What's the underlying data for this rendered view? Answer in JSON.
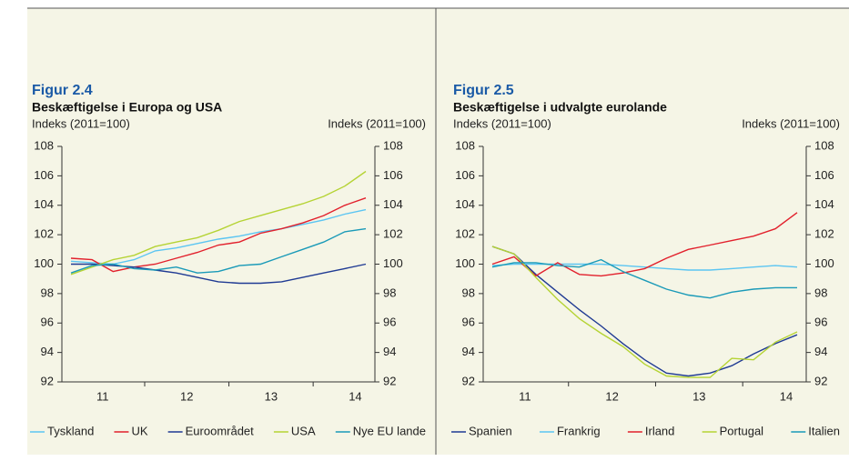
{
  "chart_data": [
    {
      "type": "line",
      "title": "Figur 2.4",
      "subtitle": "Beskæftigelse i Europa og USA",
      "ylabel": "Indeks (2011=100)",
      "y2label": "Indeks (2011=100)",
      "categories": [
        null,
        "11",
        null,
        null,
        null,
        "12",
        null,
        null,
        null,
        "13",
        null,
        null,
        null,
        "14",
        null
      ],
      "ylim": [
        92,
        108
      ],
      "yticks": [
        92,
        94,
        96,
        98,
        100,
        102,
        104,
        106,
        108
      ],
      "y2lim": [
        92,
        108
      ],
      "y2ticks": [
        92,
        94,
        96,
        98,
        100,
        102,
        104,
        106,
        108
      ],
      "series": [
        {
          "name": "Tyskland",
          "color": "#5bc5f2",
          "values": [
            100.2,
            100.1,
            100.0,
            100.3,
            100.9,
            101.1,
            101.4,
            101.7,
            101.9,
            102.2,
            102.4,
            102.7,
            103.0,
            103.4,
            103.7
          ]
        },
        {
          "name": "UK",
          "color": "#e2202c",
          "values": [
            100.4,
            100.3,
            99.5,
            99.8,
            100.0,
            100.4,
            100.8,
            101.3,
            101.5,
            102.1,
            102.4,
            102.8,
            103.3,
            104.0,
            104.5
          ]
        },
        {
          "name": "Euroområdet",
          "color": "#1f3a93",
          "values": [
            100.0,
            100.0,
            99.9,
            99.8,
            99.6,
            99.4,
            99.1,
            98.8,
            98.7,
            98.7,
            98.8,
            99.1,
            99.4,
            99.7,
            100.0
          ]
        },
        {
          "name": "USA",
          "color": "#b5d334",
          "values": [
            99.3,
            99.8,
            100.3,
            100.6,
            101.2,
            101.5,
            101.8,
            102.3,
            102.9,
            103.3,
            103.7,
            104.1,
            104.6,
            105.3,
            106.3
          ]
        },
        {
          "name": "Nye EU lande",
          "color": "#1a9ab8",
          "values": [
            99.4,
            99.9,
            100.0,
            99.7,
            99.6,
            99.8,
            99.4,
            99.5,
            99.9,
            100.0,
            100.5,
            101.0,
            101.5,
            102.2,
            102.4
          ]
        }
      ]
    },
    {
      "type": "line",
      "title": "Figur 2.5",
      "subtitle": "Beskæftigelse i udvalgte eurolande",
      "ylabel": "Indeks (2011=100)",
      "y2label": "Indeks (2011=100)",
      "categories": [
        null,
        "11",
        null,
        null,
        null,
        "12",
        null,
        null,
        null,
        "13",
        null,
        null,
        null,
        "14",
        null
      ],
      "ylim": [
        92,
        108
      ],
      "yticks": [
        92,
        94,
        96,
        98,
        100,
        102,
        104,
        106,
        108
      ],
      "y2lim": [
        92,
        108
      ],
      "y2ticks": [
        92,
        94,
        96,
        98,
        100,
        102,
        104,
        106,
        108
      ],
      "series": [
        {
          "name": "Spanien",
          "color": "#1f3a93",
          "values": [
            101.2,
            100.7,
            99.3,
            98.1,
            96.9,
            95.8,
            94.6,
            93.5,
            92.6,
            92.4,
            92.6,
            93.1,
            93.9,
            94.6,
            95.2
          ]
        },
        {
          "name": "Frankrig",
          "color": "#5bc5f2",
          "values": [
            99.9,
            100.0,
            100.0,
            100.0,
            100.0,
            100.0,
            99.9,
            99.8,
            99.7,
            99.6,
            99.6,
            99.7,
            99.8,
            99.9,
            99.8
          ]
        },
        {
          "name": "Irland",
          "color": "#e2202c",
          "values": [
            100.0,
            100.5,
            99.2,
            100.1,
            99.3,
            99.2,
            99.4,
            99.7,
            100.4,
            101.0,
            101.3,
            101.6,
            101.9,
            102.4,
            103.5
          ]
        },
        {
          "name": "Portugal",
          "color": "#b5d334",
          "values": [
            101.2,
            100.7,
            99.1,
            97.6,
            96.3,
            95.3,
            94.4,
            93.2,
            92.4,
            92.3,
            92.3,
            93.6,
            93.5,
            94.7,
            95.4
          ]
        },
        {
          "name": "Italien",
          "color": "#1a9ab8",
          "values": [
            99.8,
            100.1,
            100.1,
            99.9,
            99.8,
            100.3,
            99.5,
            98.9,
            98.3,
            97.9,
            97.7,
            98.1,
            98.3,
            98.4,
            98.4
          ]
        }
      ]
    }
  ]
}
